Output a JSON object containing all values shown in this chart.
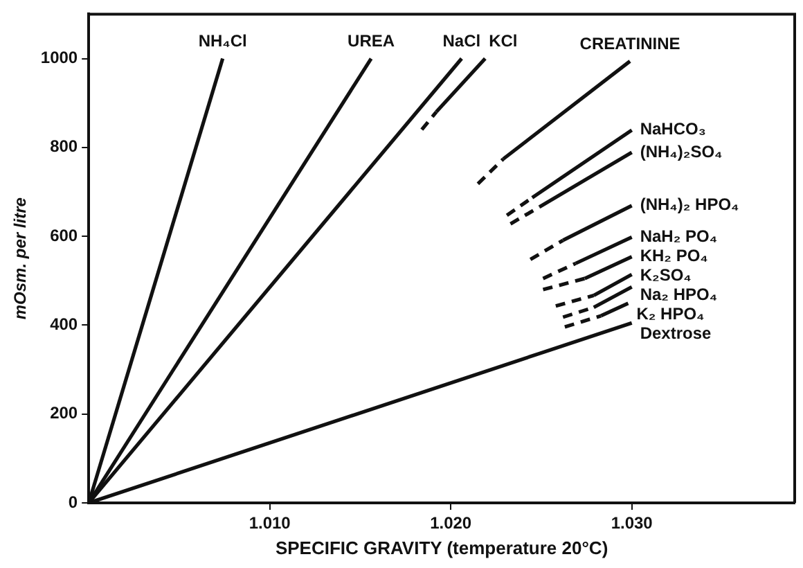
{
  "chart_data": {
    "type": "line",
    "xlabel": "SPECIFIC GRAVITY (temperature 20°C)",
    "ylabel": "mOsm. per litre",
    "xlim": [
      1.0,
      1.039
    ],
    "xticks": [
      {
        "value": 1.01,
        "label": "1.010"
      },
      {
        "value": 1.02,
        "label": "1.020"
      },
      {
        "value": 1.03,
        "label": "1.030"
      }
    ],
    "ylim": [
      0,
      1100
    ],
    "yticks": [
      0,
      200,
      400,
      600,
      800,
      1000
    ],
    "grid": false,
    "legend": false,
    "marker": "none",
    "series": [
      {
        "name": "NH₄Cl",
        "color": "#111111",
        "x": [
          1.0,
          1.0074
        ],
        "values": [
          0,
          1000
        ],
        "line_style": "solid"
      },
      {
        "name": "UREA",
        "color": "#111111",
        "x": [
          1.0,
          1.0156
        ],
        "values": [
          0,
          1000
        ],
        "line_style": "solid"
      },
      {
        "name": "NaCl",
        "color": "#111111",
        "x": [
          1.0,
          1.0206
        ],
        "values": [
          0,
          1000
        ],
        "line_style": "solid"
      },
      {
        "color": "#111111",
        "x": [
          1.0184,
          1.0192
        ],
        "values": [
          840,
          880
        ],
        "line_style": "dashed"
      },
      {
        "name": "KCl",
        "color": "#111111",
        "x": [
          1.0192,
          1.0219
        ],
        "values": [
          880,
          1000
        ],
        "line_style": "solid"
      },
      {
        "color": "#111111",
        "x": [
          1.0215,
          1.0229
        ],
        "values": [
          718,
          774
        ],
        "line_style": "dashed"
      },
      {
        "name": "CREATININE",
        "color": "#111111",
        "x": [
          1.0229,
          1.0299
        ],
        "values": [
          774,
          994
        ],
        "line_style": "solid"
      },
      {
        "color": "#111111",
        "x": [
          1.0231,
          1.0245
        ],
        "values": [
          647,
          687
        ],
        "line_style": "dashed"
      },
      {
        "name": "NaHCO₃",
        "color": "#111111",
        "x": [
          1.0245,
          1.03
        ],
        "values": [
          687,
          839
        ],
        "line_style": "solid"
      },
      {
        "color": "#111111",
        "x": [
          1.0233,
          1.0249
        ],
        "values": [
          628,
          666
        ],
        "line_style": "dashed"
      },
      {
        "name": "(NH₄)₂SO₄",
        "color": "#111111",
        "x": [
          1.0249,
          1.03
        ],
        "values": [
          666,
          789
        ],
        "line_style": "solid"
      },
      {
        "color": "#111111",
        "x": [
          1.0244,
          1.0262
        ],
        "values": [
          548,
          591
        ],
        "line_style": "dashed"
      },
      {
        "name": "(NH₄)₂ HPO₄",
        "color": "#111111",
        "x": [
          1.0262,
          1.03
        ],
        "values": [
          591,
          669
        ],
        "line_style": "solid"
      },
      {
        "color": "#111111",
        "x": [
          1.0251,
          1.0269
        ],
        "values": [
          505,
          539
        ],
        "line_style": "dashed"
      },
      {
        "name": "NaH₂ PO₄",
        "color": "#111111",
        "x": [
          1.0269,
          1.03
        ],
        "values": [
          539,
          598
        ],
        "line_style": "solid"
      },
      {
        "color": "#111111",
        "x": [
          1.0251,
          1.0274
        ],
        "values": [
          480,
          505
        ],
        "line_style": "dashed"
      },
      {
        "name": "KH₂ PO₄",
        "color": "#111111",
        "x": [
          1.0274,
          1.03
        ],
        "values": [
          505,
          554
        ],
        "line_style": "solid"
      },
      {
        "color": "#111111",
        "x": [
          1.0258,
          1.0279
        ],
        "values": [
          443,
          467
        ],
        "line_style": "dashed"
      },
      {
        "name": "K₂SO₄",
        "color": "#111111",
        "x": [
          1.0279,
          1.03
        ],
        "values": [
          467,
          514
        ],
        "line_style": "solid"
      },
      {
        "color": "#111111",
        "x": [
          1.0262,
          1.0279
        ],
        "values": [
          418,
          440
        ],
        "line_style": "dashed"
      },
      {
        "name": "Na₂ HPO₄",
        "color": "#111111",
        "x": [
          1.0279,
          1.03
        ],
        "values": [
          440,
          486
        ],
        "line_style": "solid"
      },
      {
        "color": "#111111",
        "x": [
          1.0263,
          1.0283
        ],
        "values": [
          396,
          421
        ],
        "line_style": "dashed"
      },
      {
        "name": "K₂ HPO₄",
        "color": "#111111",
        "x": [
          1.0283,
          1.0298
        ],
        "values": [
          421,
          449
        ],
        "line_style": "solid"
      },
      {
        "name": "Dextrose",
        "color": "#111111",
        "x": [
          1.0,
          1.03
        ],
        "values": [
          0,
          405
        ],
        "line_style": "solid"
      }
    ]
  }
}
